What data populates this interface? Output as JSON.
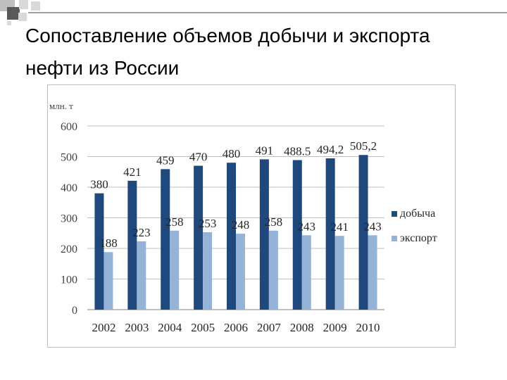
{
  "slide": {
    "title": "Сопоставление объемов добычи и экспорта нефти из России"
  },
  "chart_data": {
    "type": "bar",
    "title": "",
    "unit_label": "млн. т",
    "xlabel": "",
    "ylabel": "",
    "categories": [
      "2002",
      "2003",
      "2004",
      "2005",
      "2006",
      "2007",
      "2008",
      "2009",
      "2010"
    ],
    "series": [
      {
        "name": "добыча",
        "color": "#1f497d",
        "values": [
          380,
          421,
          459,
          470,
          480,
          491,
          488.5,
          494.2,
          505.2
        ],
        "labels": [
          "380",
          "421",
          "459",
          "470",
          "480",
          "491",
          "488.5",
          "494,2",
          "505,2"
        ]
      },
      {
        "name": "экспорт",
        "color": "#95b3d7",
        "values": [
          188,
          223,
          258,
          253,
          248,
          258,
          243,
          241,
          243
        ],
        "labels": [
          "188",
          "223",
          "258",
          "253",
          "248",
          "258",
          "243",
          "241",
          "243"
        ]
      }
    ],
    "ylim": [
      0,
      600
    ],
    "yticks": [
      "0",
      "100",
      "200",
      "300",
      "400",
      "500",
      "600"
    ],
    "grid": true,
    "legend": "right"
  }
}
